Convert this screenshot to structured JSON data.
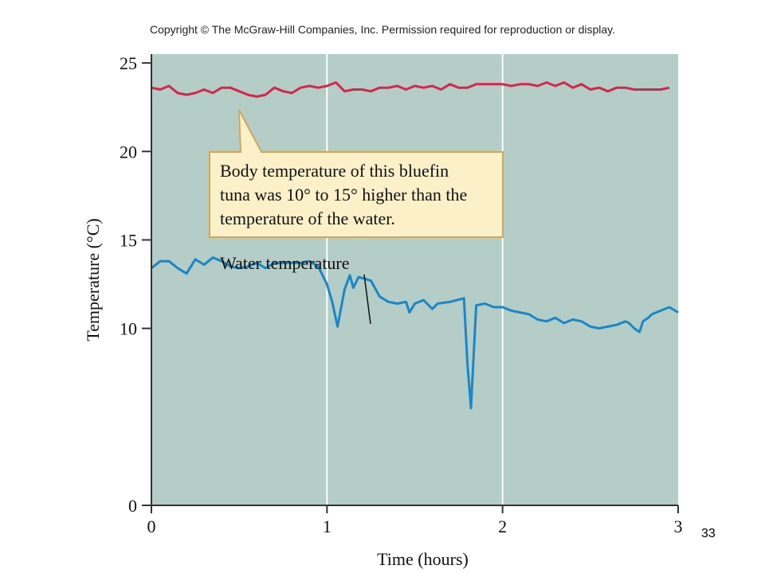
{
  "copyright": "Copyright © The McGraw-Hill Companies, Inc. Permission required for reproduction or display.",
  "slide_number": "33",
  "chart_data": {
    "type": "line",
    "xlabel": "Time (hours)",
    "ylabel": "Temperature (°C)",
    "xlim": [
      0,
      3
    ],
    "ylim": [
      0,
      25.5
    ],
    "xticks": [
      "0",
      "1",
      "2",
      "3"
    ],
    "yticks": [
      "0",
      "10",
      "15",
      "20",
      "25"
    ],
    "ytick_values": [
      0,
      10,
      15,
      20,
      25
    ],
    "grid": "vertical lines at each hour",
    "colors": {
      "plot_bg": "#b4cdc6",
      "body_line": "#d7264e",
      "water_line": "#1b86c8",
      "callout_bg": "#fbf0c8",
      "callout_border": "#d1a85a"
    },
    "annotations": {
      "callout_lines": [
        "Body temperature of this bluefin",
        "tuna was 10° to 15° higher than the",
        "temperature of the water."
      ],
      "water_label": "Water temperature"
    },
    "series": [
      {
        "key": "body",
        "x": [
          0,
          0.05,
          0.1,
          0.15,
          0.2,
          0.25,
          0.3,
          0.35,
          0.4,
          0.45,
          0.5,
          0.55,
          0.6,
          0.65,
          0.7,
          0.75,
          0.8,
          0.85,
          0.9,
          0.95,
          1.0,
          1.05,
          1.1,
          1.15,
          1.2,
          1.25,
          1.3,
          1.35,
          1.4,
          1.45,
          1.5,
          1.55,
          1.6,
          1.65,
          1.7,
          1.75,
          1.8,
          1.85,
          1.9,
          1.95,
          2.0,
          2.05,
          2.1,
          2.15,
          2.2,
          2.25,
          2.3,
          2.35,
          2.4,
          2.45,
          2.5,
          2.55,
          2.6,
          2.65,
          2.7,
          2.75,
          2.8,
          2.85,
          2.9,
          2.95
        ],
        "y": [
          23.6,
          23.5,
          23.7,
          23.3,
          23.2,
          23.3,
          23.5,
          23.3,
          23.6,
          23.6,
          23.4,
          23.2,
          23.1,
          23.2,
          23.6,
          23.4,
          23.3,
          23.6,
          23.7,
          23.6,
          23.7,
          23.9,
          23.4,
          23.5,
          23.5,
          23.4,
          23.6,
          23.6,
          23.7,
          23.5,
          23.7,
          23.6,
          23.7,
          23.5,
          23.8,
          23.6,
          23.6,
          23.8,
          23.8,
          23.8,
          23.8,
          23.7,
          23.8,
          23.8,
          23.7,
          23.9,
          23.7,
          23.9,
          23.6,
          23.8,
          23.5,
          23.6,
          23.4,
          23.6,
          23.6,
          23.5,
          23.5,
          23.5,
          23.5,
          23.6
        ]
      },
      {
        "key": "water",
        "x": [
          0,
          0.05,
          0.1,
          0.15,
          0.2,
          0.25,
          0.3,
          0.35,
          0.4,
          0.45,
          0.5,
          0.55,
          0.6,
          0.65,
          0.7,
          0.75,
          0.8,
          0.85,
          0.9,
          0.95,
          1.0,
          1.03,
          1.06,
          1.1,
          1.13,
          1.15,
          1.18,
          1.25,
          1.3,
          1.35,
          1.4,
          1.45,
          1.47,
          1.5,
          1.55,
          1.6,
          1.63,
          1.7,
          1.78,
          1.8,
          1.82,
          1.85,
          1.9,
          1.95,
          2.0,
          2.05,
          2.1,
          2.15,
          2.2,
          2.25,
          2.3,
          2.35,
          2.4,
          2.45,
          2.5,
          2.55,
          2.6,
          2.65,
          2.7,
          2.72,
          2.75,
          2.78,
          2.8,
          2.83,
          2.85,
          2.9,
          2.95,
          3.0
        ],
        "y": [
          13.4,
          13.8,
          13.8,
          13.4,
          13.1,
          13.9,
          13.6,
          14.0,
          13.8,
          13.5,
          13.4,
          13.5,
          13.7,
          13.4,
          13.7,
          13.7,
          13.7,
          13.7,
          13.8,
          13.5,
          12.5,
          11.5,
          10.1,
          12.2,
          13.0,
          12.3,
          12.9,
          12.7,
          11.8,
          11.5,
          11.4,
          11.5,
          10.9,
          11.4,
          11.6,
          11.1,
          11.4,
          11.5,
          11.7,
          8.0,
          5.5,
          11.3,
          11.4,
          11.2,
          11.2,
          11.0,
          10.9,
          10.8,
          10.5,
          10.4,
          10.6,
          10.3,
          10.5,
          10.4,
          10.1,
          10.0,
          10.1,
          10.2,
          10.4,
          10.3,
          10.0,
          9.8,
          10.4,
          10.6,
          10.8,
          11.0,
          11.2,
          10.9
        ]
      }
    ]
  }
}
